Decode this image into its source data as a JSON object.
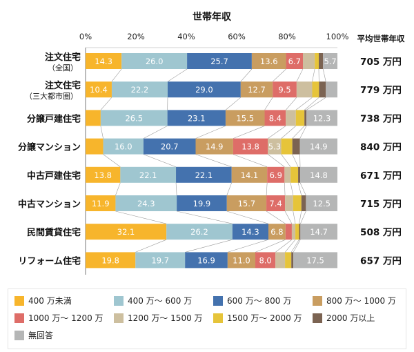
{
  "chart_data": {
    "type": "bar",
    "orientation": "horizontal",
    "stacked": true,
    "title": "世帯年収",
    "xlabel": "",
    "ylabel": "",
    "xlim": [
      0,
      100
    ],
    "x_ticks": [
      "0%",
      "20%",
      "40%",
      "60%",
      "80%",
      "100%"
    ],
    "right_column_header": "平均世帯年収",
    "categories": [
      {
        "label": "注文住宅",
        "sublabel": "（全国）",
        "average": "705 万円"
      },
      {
        "label": "注文住宅",
        "sublabel": "（三大都市圏）",
        "average": "779 万円"
      },
      {
        "label": "分譲戸建住宅",
        "sublabel": "",
        "average": "738 万円"
      },
      {
        "label": "分譲マンション",
        "sublabel": "",
        "average": "840 万円"
      },
      {
        "label": "中古戸建住宅",
        "sublabel": "",
        "average": "671 万円"
      },
      {
        "label": "中古マンション",
        "sublabel": "",
        "average": "715 万円"
      },
      {
        "label": "民間賃貸住宅",
        "sublabel": "",
        "average": "508 万円"
      },
      {
        "label": "リフォーム住宅",
        "sublabel": "",
        "average": "657 万円"
      }
    ],
    "series": [
      {
        "name": "400 万未満",
        "color": "#f7b52c",
        "values": [
          14.3,
          10.4,
          6.0,
          7.0,
          13.8,
          11.9,
          32.1,
          19.8
        ],
        "labeled": [
          true,
          true,
          false,
          false,
          true,
          true,
          true,
          true
        ]
      },
      {
        "name": "400 万～ 600 万",
        "color": "#9fc6d0",
        "values": [
          26.0,
          22.2,
          26.5,
          16.0,
          22.1,
          24.3,
          26.2,
          19.7
        ],
        "labeled": [
          true,
          true,
          true,
          true,
          true,
          true,
          true,
          true
        ]
      },
      {
        "name": "600 万～ 800 万",
        "color": "#4472ae",
        "values": [
          25.7,
          29.0,
          23.1,
          20.7,
          22.1,
          19.9,
          14.3,
          16.9
        ],
        "labeled": [
          true,
          true,
          true,
          true,
          true,
          true,
          true,
          true
        ]
      },
      {
        "name": "800 万～ 1000 万",
        "color": "#c99d60",
        "values": [
          13.6,
          12.7,
          15.5,
          14.9,
          14.1,
          15.7,
          6.8,
          11.0
        ],
        "labeled": [
          true,
          true,
          true,
          true,
          true,
          true,
          true,
          true
        ]
      },
      {
        "name": "1000 万～ 1200 万",
        "color": "#de6d68",
        "values": [
          6.7,
          9.5,
          8.4,
          13.8,
          6.9,
          7.4,
          2.5,
          8.0
        ],
        "labeled": [
          true,
          true,
          true,
          true,
          true,
          true,
          false,
          true
        ]
      },
      {
        "name": "1200 万～ 1500 万",
        "color": "#cdbf9f",
        "values": [
          4.7,
          6.2,
          4.0,
          5.3,
          2.4,
          3.2,
          1.4,
          3.8
        ],
        "labeled": [
          false,
          false,
          false,
          true,
          false,
          false,
          false,
          false
        ]
      },
      {
        "name": "1500 万～ 2000 万",
        "color": "#e6c43a",
        "values": [
          1.6,
          2.7,
          3.4,
          4.4,
          3.0,
          3.3,
          1.5,
          2.5
        ],
        "labeled": [
          false,
          false,
          false,
          false,
          false,
          false,
          false,
          false
        ]
      },
      {
        "name": "2000 万以上",
        "color": "#7b6352",
        "values": [
          1.7,
          2.7,
          0.8,
          3.0,
          0.8,
          1.8,
          0.5,
          0.8
        ],
        "labeled": [
          false,
          false,
          false,
          false,
          false,
          false,
          false,
          false
        ]
      },
      {
        "name": "無回答",
        "color": "#b5b6b6",
        "values": [
          5.7,
          4.6,
          12.3,
          14.9,
          14.8,
          12.5,
          14.7,
          17.5
        ],
        "labeled": [
          true,
          false,
          true,
          true,
          true,
          true,
          true,
          true
        ]
      }
    ]
  }
}
